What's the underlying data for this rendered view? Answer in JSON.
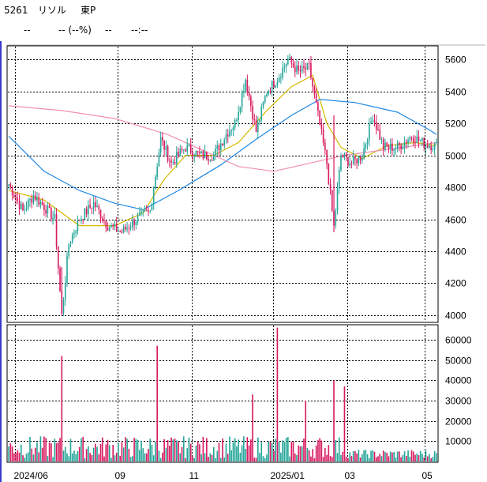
{
  "header": {
    "code": "5261",
    "name": "リソル",
    "market": "東P",
    "price": "--",
    "change": "-- (--%)",
    "volume": "--",
    "time": "--:--"
  },
  "colors": {
    "up": "#26a69a",
    "down": "#d81b60",
    "ma_short": "#d4b800",
    "ma_mid": "#1e88e5",
    "ma_long": "#f48fb1"
  },
  "chart_data": [
    {
      "type": "candlestick",
      "y_ticks": [
        4000,
        4200,
        4400,
        4600,
        4800,
        5000,
        5200,
        5400,
        5600
      ],
      "ylim": [
        3960,
        5680
      ],
      "x_ticks": [
        "2024/06",
        "09",
        "11",
        "2025/01",
        "03",
        "05"
      ],
      "grid": true,
      "series": [
        {
          "name": "ohlc",
          "points": [
            {
              "i": 0,
              "c": 4820
            },
            {
              "i": 8,
              "c": 4650
            },
            {
              "i": 14,
              "c": 4750
            },
            {
              "i": 20,
              "c": 4680
            },
            {
              "i": 26,
              "c": 4600
            },
            {
              "i": 30,
              "c": 4000
            },
            {
              "i": 34,
              "c": 4450
            },
            {
              "i": 40,
              "c": 4600
            },
            {
              "i": 48,
              "c": 4700
            },
            {
              "i": 56,
              "c": 4560
            },
            {
              "i": 64,
              "c": 4520
            },
            {
              "i": 72,
              "c": 4600
            },
            {
              "i": 80,
              "c": 4650
            },
            {
              "i": 86,
              "c": 5100
            },
            {
              "i": 92,
              "c": 4950
            },
            {
              "i": 100,
              "c": 5050
            },
            {
              "i": 108,
              "c": 5000
            },
            {
              "i": 116,
              "c": 5000
            },
            {
              "i": 124,
              "c": 5150
            },
            {
              "i": 128,
              "c": 5200
            },
            {
              "i": 134,
              "c": 5480
            },
            {
              "i": 140,
              "c": 5150
            },
            {
              "i": 146,
              "c": 5400
            },
            {
              "i": 152,
              "c": 5480
            },
            {
              "i": 158,
              "c": 5600
            },
            {
              "i": 164,
              "c": 5520
            },
            {
              "i": 170,
              "c": 5550
            },
            {
              "i": 175,
              "c": 5250
            },
            {
              "i": 180,
              "c": 4950
            },
            {
              "i": 184,
              "c": 4550
            },
            {
              "i": 188,
              "c": 5000
            },
            {
              "i": 194,
              "c": 4950
            },
            {
              "i": 200,
              "c": 5000
            },
            {
              "i": 206,
              "c": 5250
            },
            {
              "i": 212,
              "c": 5050
            },
            {
              "i": 220,
              "c": 5050
            },
            {
              "i": 228,
              "c": 5120
            },
            {
              "i": 236,
              "c": 5070
            },
            {
              "i": 242,
              "c": 5060
            }
          ]
        },
        {
          "name": "ma_short",
          "points": [
            [
              0,
              4780
            ],
            [
              20,
              4720
            ],
            [
              40,
              4560
            ],
            [
              60,
              4560
            ],
            [
              76,
              4640
            ],
            [
              88,
              4850
            ],
            [
              100,
              5000
            ],
            [
              116,
              5000
            ],
            [
              130,
              5080
            ],
            [
              146,
              5280
            ],
            [
              160,
              5430
            ],
            [
              172,
              5500
            ],
            [
              180,
              5200
            ],
            [
              188,
              5050
            ],
            [
              200,
              4980
            ],
            [
              214,
              5060
            ],
            [
              230,
              5080
            ],
            [
              242,
              5060
            ]
          ]
        },
        {
          "name": "ma_mid",
          "points": [
            [
              0,
              5120
            ],
            [
              20,
              4900
            ],
            [
              40,
              4780
            ],
            [
              60,
              4700
            ],
            [
              76,
              4660
            ],
            [
              96,
              4780
            ],
            [
              120,
              4940
            ],
            [
              140,
              5100
            ],
            [
              160,
              5250
            ],
            [
              176,
              5350
            ],
            [
              196,
              5330
            ],
            [
              220,
              5270
            ],
            [
              238,
              5160
            ],
            [
              242,
              5130
            ]
          ]
        },
        {
          "name": "ma_long",
          "points": [
            [
              0,
              5310
            ],
            [
              30,
              5280
            ],
            [
              60,
              5230
            ],
            [
              90,
              5130
            ],
            [
              110,
              5030
            ],
            [
              130,
              4930
            ],
            [
              150,
              4900
            ],
            [
              170,
              4950
            ],
            [
              190,
              5000
            ],
            [
              210,
              5030
            ],
            [
              230,
              5060
            ],
            [
              242,
              5080
            ]
          ]
        }
      ]
    },
    {
      "type": "bar",
      "y_ticks": [
        "10000",
        "20000",
        "30000",
        "40000",
        "50000",
        "60000"
      ],
      "ylim": [
        0,
        67000
      ],
      "notable_spikes": [
        {
          "i": 30,
          "v": 52000
        },
        {
          "i": 84,
          "v": 57000
        },
        {
          "i": 138,
          "v": 33000
        },
        {
          "i": 152,
          "v": 66000
        },
        {
          "i": 168,
          "v": 30000
        },
        {
          "i": 184,
          "v": 40000
        },
        {
          "i": 190,
          "v": 37000
        }
      ]
    }
  ]
}
